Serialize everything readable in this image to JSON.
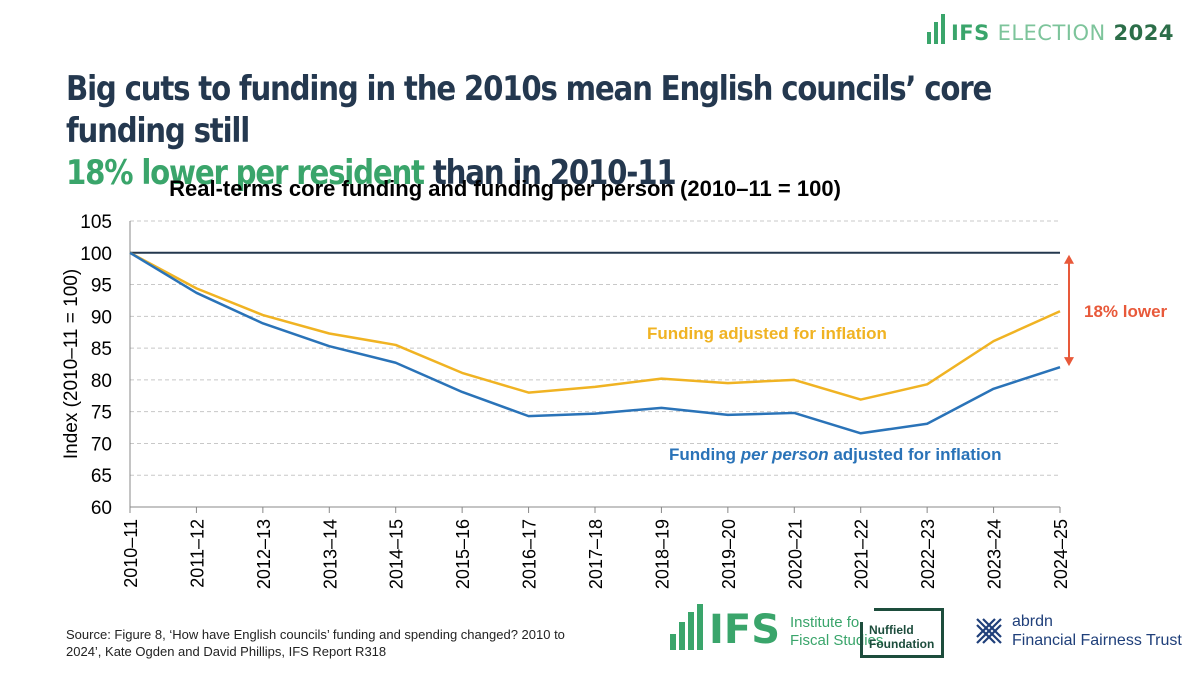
{
  "brand": {
    "ifs": "IFS",
    "election": "ELECTION",
    "year": "2024"
  },
  "headline": {
    "part1": "Big cuts to funding in the 2010s mean English councils’ core funding still",
    "highlight": "18% lower per resident",
    "part2": " than in 2010-11"
  },
  "source": "Source: Figure 8, ‘How have English councils’ funding and spending changed? 2010 to 2024’, Kate Ogden and David Phillips, IFS Report R318",
  "logos": {
    "ifs_word": "IFS",
    "ifs_sub1": "Institute for",
    "ifs_sub2": "Fiscal Studies",
    "nuffield1": "Nuffield",
    "nuffield2": "Foundation",
    "abrdn1": "abrdn",
    "abrdn2": "Financial Fairness Trust"
  },
  "colors": {
    "green": "#3aa56b",
    "navy": "#24384f",
    "yellow": "#f0b323",
    "blue": "#2a73b8",
    "red": "#e8593a"
  },
  "chart_data": {
    "type": "line",
    "title": "Real-terms core funding and funding per person (2010–11 = 100)",
    "xlabel": "",
    "ylabel": "Index (2010–11 = 100)",
    "ylim": [
      60,
      105
    ],
    "yticks": [
      60,
      65,
      70,
      75,
      80,
      85,
      90,
      95,
      100,
      105
    ],
    "categories": [
      "2010–11",
      "2011–12",
      "2012–13",
      "2013–14",
      "2014–15",
      "2015–16",
      "2016–17",
      "2017–18",
      "2018–19",
      "2019–20",
      "2020–21",
      "2021–22",
      "2022–23",
      "2023–24",
      "2024–25"
    ],
    "reference_line": 100,
    "series": [
      {
        "name": "Funding adjusted for inflation",
        "color": "#f0b323",
        "values": [
          100,
          94.4,
          90.2,
          87.3,
          85.5,
          81.1,
          78.0,
          78.9,
          80.2,
          79.5,
          80.0,
          76.9,
          79.3,
          86.1,
          90.8
        ]
      },
      {
        "name": "Funding per person adjusted for inflation",
        "color": "#2a73b8",
        "values": [
          100,
          93.7,
          88.9,
          85.3,
          82.7,
          78.1,
          74.3,
          74.7,
          75.6,
          74.5,
          74.8,
          71.6,
          73.1,
          78.6,
          82.0
        ]
      }
    ],
    "legend_label_yellow": "Funding adjusted for inflation",
    "legend_label_blue_a": "Funding ",
    "legend_label_blue_b": "per person",
    "legend_label_blue_c": " adjusted for inflation",
    "annotation": "18% lower"
  }
}
